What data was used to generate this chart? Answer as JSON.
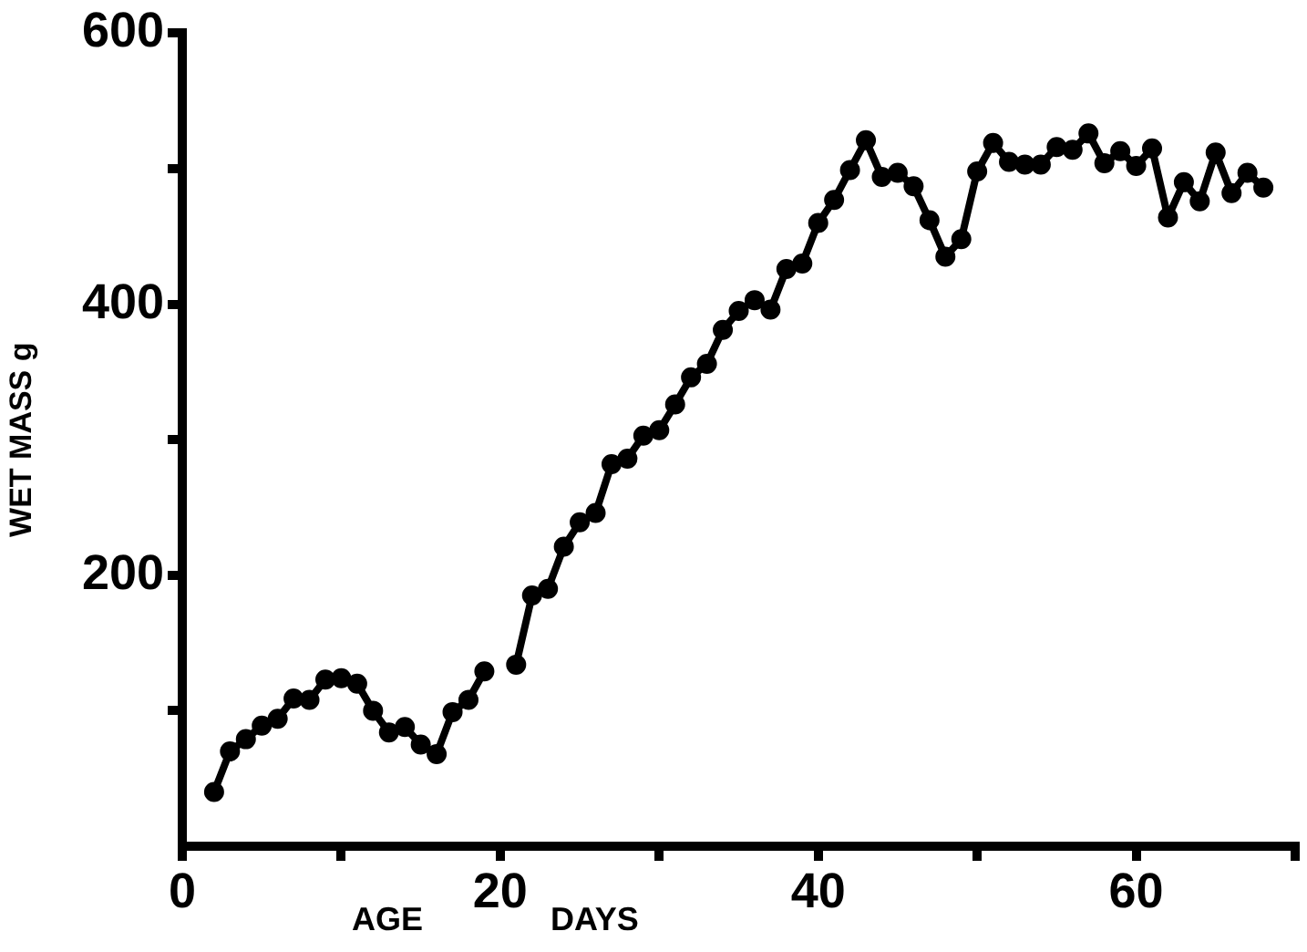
{
  "chart_data": {
    "type": "line",
    "xlabel": "AGE DAYS",
    "ylabel": "WET MASS g",
    "marker": "circle",
    "line_style": "solid",
    "grid": false,
    "legend": false,
    "xlim": [
      0,
      70
    ],
    "xticks": [
      0,
      {
        "value": 10,
        "label": null
      },
      20,
      {
        "value": 30,
        "label": null
      },
      40,
      {
        "value": 50,
        "label": null
      },
      60,
      {
        "value": 70,
        "label": null
      }
    ],
    "ylim": [
      0,
      600
    ],
    "yticks": [
      {
        "value": 100,
        "label": null
      },
      200,
      {
        "value": 300,
        "label": null
      },
      400,
      {
        "value": 500,
        "label": null
      },
      600
    ],
    "series": [
      {
        "color": "#000000",
        "x": [
          2,
          3,
          4,
          5,
          6,
          7,
          8,
          9,
          10,
          11,
          12,
          13,
          14,
          15,
          16,
          17,
          18,
          19
        ],
        "values": [
          40,
          70,
          79,
          89,
          94,
          109,
          108,
          123,
          124,
          120,
          100,
          84,
          88,
          75,
          68,
          99,
          108,
          129
        ]
      },
      {
        "color": "#000000",
        "x": [
          21,
          22,
          23,
          24,
          25,
          26,
          27,
          28,
          29,
          30,
          31,
          32,
          33,
          34,
          35,
          36,
          37,
          38,
          39,
          40,
          41,
          42,
          43,
          44,
          45,
          46,
          47,
          48,
          49,
          50,
          51,
          52,
          53,
          54,
          55,
          56,
          57,
          58,
          59,
          60,
          61,
          62,
          63,
          64,
          65,
          66,
          67,
          68
        ],
        "values": [
          134,
          185,
          190,
          221,
          239,
          246,
          282,
          286,
          303,
          307,
          326,
          346,
          356,
          381,
          395,
          403,
          396,
          426,
          430,
          460,
          477,
          499,
          521,
          494,
          497,
          487,
          462,
          435,
          448,
          498,
          519,
          505,
          503,
          503,
          516,
          514,
          526,
          504,
          513,
          502,
          515,
          464,
          490,
          476,
          512,
          482,
          497,
          486
        ]
      }
    ]
  }
}
